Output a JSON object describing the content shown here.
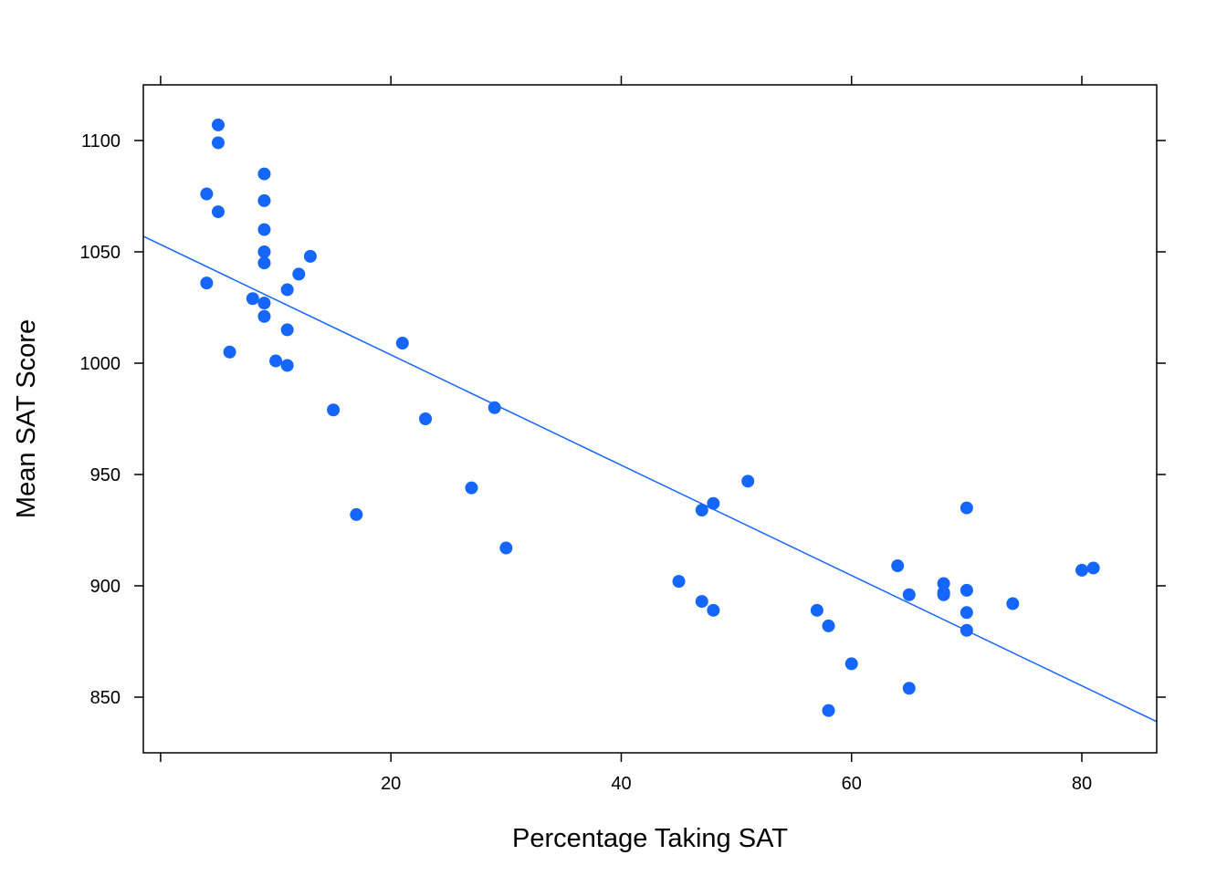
{
  "chart_data": {
    "type": "scatter",
    "title": "",
    "xlabel": "Percentage Taking SAT",
    "ylabel": "Mean SAT Score",
    "xlim": [
      -1.5,
      86.5
    ],
    "ylim": [
      825,
      1125
    ],
    "xticks": [
      20,
      40,
      60,
      80
    ],
    "yticks": [
      850,
      900,
      950,
      1000,
      1050,
      1100
    ],
    "xtick_labels": [
      "20",
      "40",
      "60",
      "80"
    ],
    "ytick_labels": [
      "850",
      "900",
      "950",
      "1000",
      "1050",
      "1100"
    ],
    "grid": false,
    "legend": "none",
    "point_color": "#1565ff",
    "line_color": "#1565ff",
    "fit_line": {
      "x": [
        -1.5,
        86.5
      ],
      "y": [
        1057,
        839
      ]
    },
    "points": [
      {
        "x": 4,
        "y": 1076
      },
      {
        "x": 4,
        "y": 1036
      },
      {
        "x": 5,
        "y": 1107
      },
      {
        "x": 5,
        "y": 1099
      },
      {
        "x": 5,
        "y": 1068
      },
      {
        "x": 6,
        "y": 1005
      },
      {
        "x": 8,
        "y": 1029
      },
      {
        "x": 9,
        "y": 1085
      },
      {
        "x": 9,
        "y": 1073
      },
      {
        "x": 9,
        "y": 1060
      },
      {
        "x": 9,
        "y": 1050
      },
      {
        "x": 9,
        "y": 1045
      },
      {
        "x": 9,
        "y": 1027
      },
      {
        "x": 9,
        "y": 1021
      },
      {
        "x": 10,
        "y": 1001
      },
      {
        "x": 11,
        "y": 1033
      },
      {
        "x": 11,
        "y": 1015
      },
      {
        "x": 11,
        "y": 999
      },
      {
        "x": 12,
        "y": 1040
      },
      {
        "x": 13,
        "y": 1048
      },
      {
        "x": 15,
        "y": 979
      },
      {
        "x": 17,
        "y": 932
      },
      {
        "x": 21,
        "y": 1009
      },
      {
        "x": 23,
        "y": 975
      },
      {
        "x": 27,
        "y": 944
      },
      {
        "x": 29,
        "y": 980
      },
      {
        "x": 30,
        "y": 917
      },
      {
        "x": 45,
        "y": 902
      },
      {
        "x": 47,
        "y": 934
      },
      {
        "x": 47,
        "y": 893
      },
      {
        "x": 48,
        "y": 937
      },
      {
        "x": 48,
        "y": 889
      },
      {
        "x": 51,
        "y": 947
      },
      {
        "x": 57,
        "y": 889
      },
      {
        "x": 58,
        "y": 882
      },
      {
        "x": 58,
        "y": 844
      },
      {
        "x": 60,
        "y": 865
      },
      {
        "x": 64,
        "y": 909
      },
      {
        "x": 65,
        "y": 896
      },
      {
        "x": 65,
        "y": 854
      },
      {
        "x": 68,
        "y": 901
      },
      {
        "x": 68,
        "y": 897
      },
      {
        "x": 68,
        "y": 896
      },
      {
        "x": 70,
        "y": 935
      },
      {
        "x": 70,
        "y": 898
      },
      {
        "x": 70,
        "y": 888
      },
      {
        "x": 70,
        "y": 880
      },
      {
        "x": 74,
        "y": 892
      },
      {
        "x": 80,
        "y": 907
      },
      {
        "x": 81,
        "y": 908
      }
    ]
  }
}
